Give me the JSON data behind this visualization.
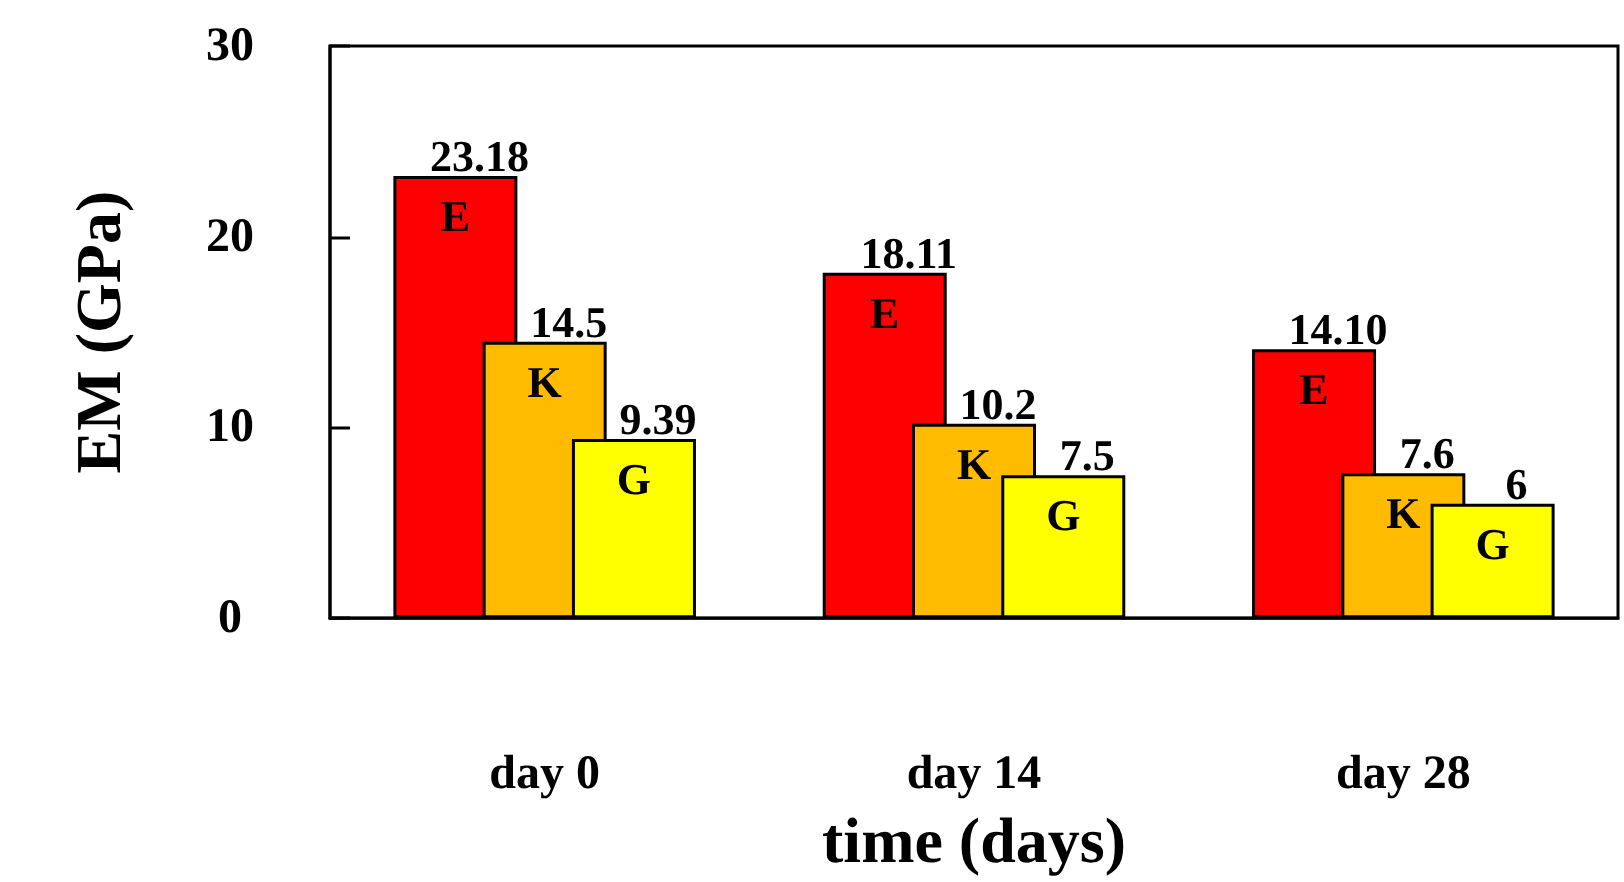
{
  "chart_data": {
    "type": "bar",
    "xlabel": "time (days)",
    "ylabel": "EM (GPa)",
    "categories": [
      "day 0",
      "day 14",
      "day 28"
    ],
    "series": [
      {
        "name": "E",
        "color": "#ff0000",
        "values": [
          23.18,
          18.11,
          14.1
        ],
        "value_labels": [
          "23.18",
          "18.11",
          "14.10"
        ]
      },
      {
        "name": "K",
        "color": "#ffbb00",
        "values": [
          14.5,
          10.2,
          7.6
        ],
        "value_labels": [
          "14.5",
          "10.2",
          "7.6"
        ]
      },
      {
        "name": "G",
        "color": "#ffff00",
        "values": [
          9.39,
          7.5,
          6
        ],
        "value_labels": [
          "9.39",
          "7.5",
          "6"
        ]
      }
    ],
    "ylim": [
      0,
      30
    ],
    "yticks": [
      0,
      10,
      20,
      30
    ],
    "grid": false,
    "legend": false
  }
}
